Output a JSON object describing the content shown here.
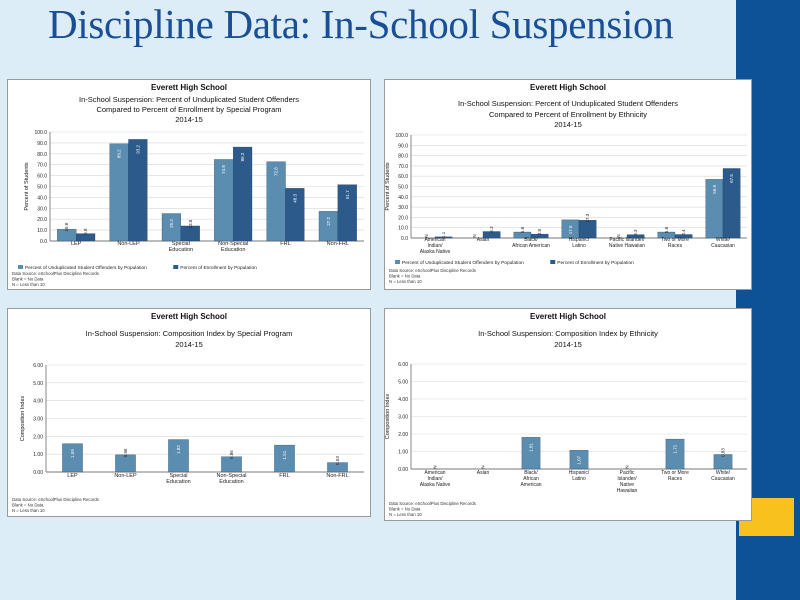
{
  "slide": {
    "title": "Discipline Data: In-School Suspension",
    "colors": {
      "background": "#dcedf7",
      "sidebar": "#0d5197",
      "accent_square": "#f7c21d",
      "title": "#1a4f95"
    }
  },
  "chart_data": [
    {
      "id": "chart1",
      "type": "bar",
      "title_lines": [
        "Everett High School",
        "In-School Suspension: Percent of Unduplicated Student Offenders",
        "Compared to Percent of Enrollment by Special Program",
        "2014-15"
      ],
      "ylabel": "Percent of Students",
      "ylim": [
        0,
        100
      ],
      "yticks": [
        "0.0",
        "10.0",
        "20.0",
        "30.0",
        "40.0",
        "50.0",
        "60.0",
        "70.0",
        "80.0",
        "90.0",
        "100.0"
      ],
      "categories": [
        [
          "LEP"
        ],
        [
          "Non-LEP"
        ],
        [
          "Special",
          "Education"
        ],
        [
          "Non-Special",
          "Education"
        ],
        [
          "FRL"
        ],
        [
          "Non-FRL"
        ]
      ],
      "series": [
        {
          "name": "Percent of Unduplicated Student Offenders by Population",
          "values": [
            10.8,
            89.2,
            25.2,
            74.8,
            72.8,
            27.2
          ],
          "labels": [
            "10.8",
            "89.2",
            "25.2",
            "74.8",
            "72.8",
            "27.2"
          ],
          "color": "#5b8db0"
        },
        {
          "name": "Percent of Enrollment by Population",
          "values": [
            6.8,
            93.2,
            13.8,
            86.2,
            48.3,
            51.7
          ],
          "labels": [
            "6.8",
            "93.2",
            "13.8",
            "86.2",
            "48.3",
            "51.7"
          ],
          "color": "#2c5a8a"
        }
      ],
      "legend": "bottom",
      "notes": [
        "Data Source: eSchoolPlus Discipline Records",
        "Blank = No Data",
        "N = Less than 10"
      ]
    },
    {
      "id": "chart2",
      "type": "bar",
      "title_lines": [
        "Everett High School",
        "In-School Suspension: Percent of Unduplicated Student Offenders",
        "Compared to Percent of Enrollment by Ethnicity",
        "2014-15"
      ],
      "ylabel": "Percent of Students",
      "ylim": [
        0,
        100
      ],
      "yticks": [
        "0.0",
        "10.0",
        "20.0",
        "30.0",
        "40.0",
        "50.0",
        "60.0",
        "70.0",
        "80.0",
        "90.0",
        "100.0"
      ],
      "categories": [
        [
          "American",
          "Indian/",
          "Alaska Native"
        ],
        [
          "Asian"
        ],
        [
          "Black/",
          "African American"
        ],
        [
          "Hispanic/",
          "Latino"
        ],
        [
          "Pacific Islander/",
          "Native Hawaiian"
        ],
        [
          "Two or More",
          "Races"
        ],
        [
          "White/",
          "Caucasian"
        ]
      ],
      "series": [
        {
          "name": "Percent of Unduplicated Student Offenders by Population",
          "values": [
            0,
            0,
            5.8,
            17.6,
            0,
            5.8,
            56.9
          ],
          "labels": [
            "N",
            "N",
            "5.8",
            "17.6",
            "N",
            "5.8",
            "56.9"
          ],
          "color": "#5b8db0"
        },
        {
          "name": "Percent of Enrollment by Population",
          "values": [
            1.1,
            6.3,
            3.8,
            17.3,
            3.3,
            3.4,
            67.5
          ],
          "labels": [
            "1.1",
            "6.3",
            "3.8",
            "17.3",
            "3.3",
            "3.4",
            "67.5"
          ],
          "color": "#2c5a8a"
        }
      ],
      "legend": "bottom",
      "notes": [
        "Data Source: eSchoolPlus Discipline Records",
        "Blank = No Data",
        "N = Less than 10"
      ]
    },
    {
      "id": "chart3",
      "type": "bar",
      "title_lines": [
        "Everett High School",
        "In-School Suspension: Composition Index by Special Program",
        "2014-15"
      ],
      "ylabel": "Composition Index",
      "ylim": [
        0,
        6
      ],
      "yticks": [
        "0.00",
        "1.00",
        "2.00",
        "3.00",
        "4.00",
        "5.00",
        "6.00"
      ],
      "categories": [
        [
          "LEP"
        ],
        [
          "Non-LEP"
        ],
        [
          "Special",
          "Education"
        ],
        [
          "Non-Special",
          "Education"
        ],
        [
          "FRL"
        ],
        [
          "Non-FRL"
        ]
      ],
      "series": [
        {
          "name": "Composition Index",
          "values": [
            1.59,
            0.96,
            1.82,
            0.86,
            1.51,
            0.53
          ],
          "labels": [
            "1.59",
            "0.96",
            "1.82",
            "0.86",
            "1.51",
            "0.53"
          ],
          "color": "#5b8db0"
        }
      ],
      "legend": "none",
      "notes": [
        "Data Source: eSchoolPlus Discipline Records",
        "Blank = No Data",
        "N = Less than 10"
      ]
    },
    {
      "id": "chart4",
      "type": "bar",
      "title_lines": [
        "Everett High School",
        "In-School Suspension: Composition Index by Ethnicity",
        "2014-15"
      ],
      "ylabel": "Composition Index",
      "ylim": [
        0,
        6
      ],
      "yticks": [
        "0.00",
        "1.00",
        "2.00",
        "3.00",
        "4.00",
        "5.00",
        "6.00"
      ],
      "categories": [
        [
          "American",
          "Indian/",
          "Alaska Native"
        ],
        [
          "Asian"
        ],
        [
          "Black/",
          "African",
          "American"
        ],
        [
          "Hispanic/",
          "Latino"
        ],
        [
          "Pacific",
          "Islander/",
          "Native",
          "Hawaiian"
        ],
        [
          "Two or More",
          "Races"
        ],
        [
          "White/",
          "Caucasian"
        ]
      ],
      "series": [
        {
          "name": "Composition Index",
          "values": [
            0,
            0,
            1.81,
            1.07,
            0,
            1.71,
            0.83
          ],
          "labels": [
            "N",
            "N",
            "1.81",
            "1.07",
            "N",
            "1.71",
            "0.83"
          ],
          "color": "#5b8db0"
        }
      ],
      "legend": "none",
      "notes": [
        "Data Source: eSchoolPlus Discipline Records",
        "Blank = No Data",
        "N = Less than 10"
      ]
    }
  ]
}
